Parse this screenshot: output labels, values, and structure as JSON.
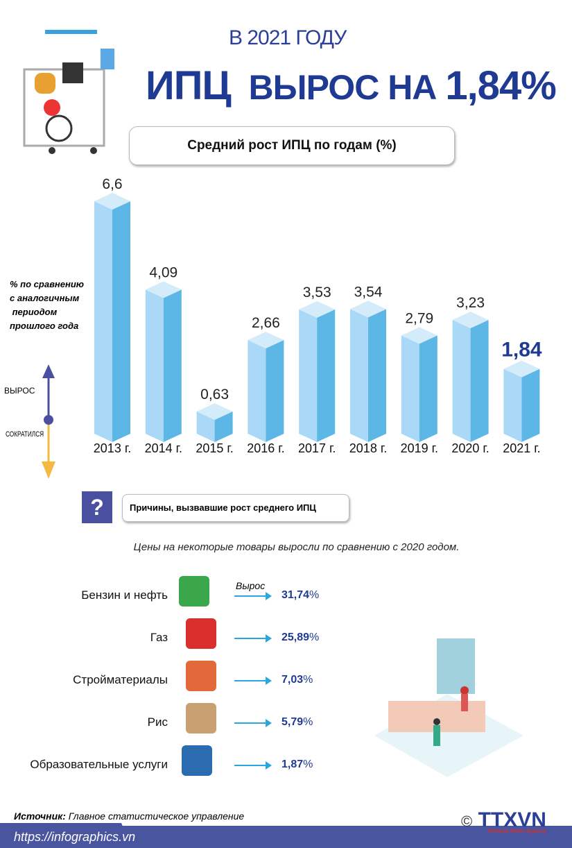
{
  "header": {
    "subtitle": "В 2021 ГОДУ",
    "title_prefix": "ИПЦ",
    "title_mid": "ВЫРОС НА",
    "title_value": "1,84%"
  },
  "chart_title": "Средний рост ИПЦ по годам (%)",
  "chart_data": {
    "type": "bar",
    "title": "Средний рост ИПЦ по годам (%)",
    "ylabel": "% по сравнению с аналогичным периодом прошлого года",
    "categories": [
      "2013 г.",
      "2014 г.",
      "2015 г.",
      "2016 г.",
      "2017 г.",
      "2018 г.",
      "2019 г.",
      "2020 г.",
      "2021 г."
    ],
    "values": [
      6.6,
      4.09,
      0.63,
      2.66,
      3.53,
      3.54,
      2.79,
      3.23,
      1.84
    ],
    "labels": [
      "6,6",
      "4,09",
      "0,63",
      "2,66",
      "3,53",
      "3,54",
      "2,79",
      "3,23",
      "1,84"
    ],
    "highlight_index": 8,
    "ylim": [
      0,
      6.6
    ],
    "grid": false,
    "colors": {
      "bar_front": "#a9d9f6",
      "bar_side": "#5cb6e6",
      "bar_top": "#d4ecfa",
      "label": "#222222",
      "highlight_label": "#1f3a93"
    }
  },
  "ylabel_lines": [
    "% по сравнению",
    "с аналогичным",
    " периодом",
    "прошлого года"
  ],
  "legend": {
    "up": "ВЫРОС",
    "down": "СОКРАТИЛСЯ",
    "up_color": "#4a4fa0",
    "down_color": "#f5b942"
  },
  "reasons": {
    "icon": "?",
    "title": "Причины, вызвавшие рост среднего ИПЦ",
    "note": "Цены на некоторые товары выросли по сравнению с 2020 годом.",
    "arrow_label": "Вырос",
    "items": [
      {
        "label": "Бензин и нефть",
        "value": "31,74",
        "unit": "%",
        "icon": "fuel-pump-icon"
      },
      {
        "label": "Газ",
        "value": "25,89",
        "unit": "%",
        "icon": "gas-cylinder-icon"
      },
      {
        "label": "Стройматериалы",
        "value": "7,03",
        "unit": "%",
        "icon": "bricks-icon"
      },
      {
        "label": "Рис",
        "value": "5,79",
        "unit": "%",
        "icon": "rice-sack-icon"
      },
      {
        "label": "Образовательные услуги",
        "value": "1,87",
        "unit": "%",
        "icon": "graduation-cap-icon"
      }
    ]
  },
  "footer": {
    "source_label": "Источник:",
    "source": "Главное статистическое управление",
    "url": "https://infographics.vn",
    "logo": "TTXVN",
    "logo_sub": "Vietnam News Agency",
    "copyright": "©"
  }
}
